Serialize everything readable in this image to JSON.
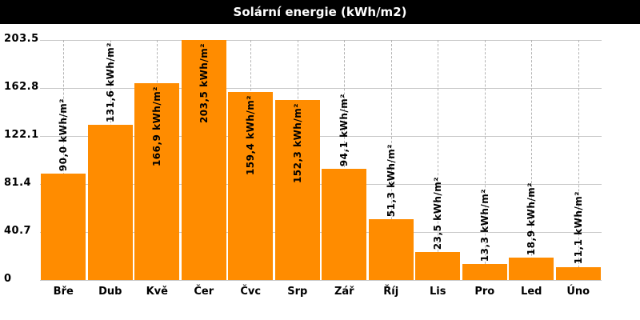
{
  "title": "Solární energie (kWh/m2)",
  "colors": {
    "title_bg": "#000000",
    "title_text": "#ffffff",
    "bar": "#ff8c00",
    "background": "#ffffff",
    "gridline_solid": "#c8c8c8",
    "gridline_dashed": "#b4b4b4",
    "label_text": "#000000"
  },
  "chart_data": {
    "type": "bar",
    "title": "Solární energie (kWh/m2)",
    "categories": [
      "Bře",
      "Dub",
      "Kvě",
      "Čer",
      "Čvc",
      "Srp",
      "Zář",
      "Říj",
      "Lis",
      "Pro",
      "Led",
      "Úno"
    ],
    "values": [
      90.0,
      131.6,
      166.9,
      203.5,
      159.4,
      152.3,
      94.1,
      51.3,
      23.5,
      13.3,
      18.9,
      11.1
    ],
    "bar_labels": [
      "90,0 kWh/m²",
      "131,6 kWh/m²",
      "166,9 kWh/m²",
      "203,5 kWh/m²",
      "159,4 kWh/m²",
      "152,3 kWh/m²",
      "94,1 kWh/m²",
      "51,3 kWh/m²",
      "23,5 kWh/m²",
      "13,3 kWh/m²",
      "18,9 kWh/m²",
      "11,1 kWh/m²"
    ],
    "y_ticks": [
      "0",
      "40.7",
      "81.4",
      "122.1",
      "162.8",
      "203.5"
    ],
    "y_tick_values": [
      0,
      40.7,
      81.4,
      122.1,
      162.8,
      203.5
    ],
    "ylim": [
      0,
      203.5
    ],
    "xlabel": "",
    "ylabel": "",
    "legend": "none",
    "grid": "horizontal-solid-vertical-dashed",
    "bar_color": "#ff8c00"
  }
}
